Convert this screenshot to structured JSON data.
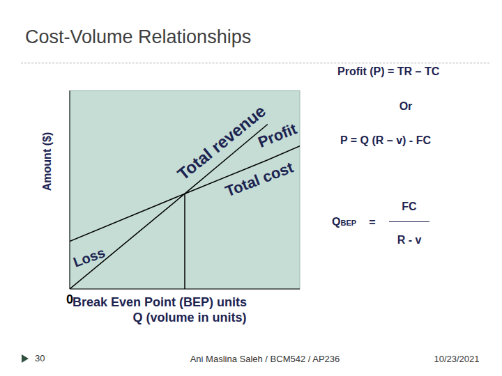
{
  "title": "Cost-Volume Relationships",
  "chart_data": {
    "type": "line",
    "x": [
      0,
      5,
      8.6,
      10
    ],
    "series": [
      {
        "name": "Total revenue",
        "color": "#000000",
        "values": [
          0,
          4.8,
          8.3,
          null
        ]
      },
      {
        "name": "Total cost",
        "color": "#000000",
        "values": [
          2.4,
          4.8,
          6.5,
          7.2
        ]
      }
    ],
    "xlim": [
      0,
      10
    ],
    "ylim": [
      0,
      10
    ],
    "xticks": [
      0
    ],
    "tick_labels": "x",
    "grid": false,
    "y_label": "Amount ($)",
    "x_label": "Q (volume in units)",
    "break_even": {
      "x": 5,
      "y": 4.8,
      "label": "Break Even Point (BEP) units"
    },
    "annotations": [
      "Profit",
      "Loss"
    ]
  },
  "formulas": {
    "profit": "Profit (P) = TR – TC",
    "or": "Or",
    "profit_alt": "P = Q (R – v) - FC",
    "bep_lhs": "Q",
    "bep_sub": "BEP",
    "bep_eq": "=",
    "bep_num": "FC",
    "bep_den": "R - v"
  },
  "footer": {
    "page": "30",
    "author": "Ani Maslina Saleh / BCM542 / AP236",
    "date": "10/23/2021"
  }
}
